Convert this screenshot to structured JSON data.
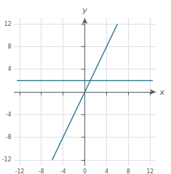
{
  "chart_data": {
    "type": "line",
    "xlabel": "x",
    "ylabel": "y",
    "xlim": [
      -13,
      13
    ],
    "ylim": [
      -13,
      13
    ],
    "xticks": [
      -12,
      -8,
      -4,
      0,
      4,
      8,
      12
    ],
    "yticks": [
      -12,
      -8,
      -4,
      4,
      8,
      12
    ],
    "grid": true,
    "series": [
      {
        "x": [
          -12.5,
          12.5
        ],
        "values": [
          2,
          2
        ],
        "color": "#3d7d96"
      },
      {
        "x": [
          -6,
          6
        ],
        "values": [
          -12,
          12
        ],
        "color": "#3d7d96"
      }
    ]
  }
}
